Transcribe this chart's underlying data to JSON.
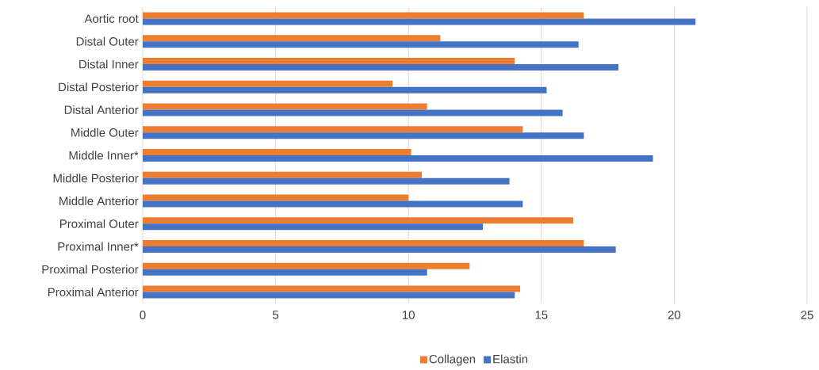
{
  "chart_data": {
    "type": "bar",
    "orientation": "horizontal",
    "categories": [
      "Aortic root",
      "Distal Outer",
      "Distal Inner",
      "Distal Posterior",
      "Distal Anterior",
      "Middle Outer",
      "Middle Inner*",
      "Middle Posterior",
      "Middle Anterior",
      "Proximal Outer",
      "Proximal Inner*",
      "Proximal Posterior",
      "Proximal Anterior"
    ],
    "series": [
      {
        "name": "Collagen",
        "color": "#ed7d31",
        "values": [
          16.6,
          11.2,
          14.0,
          9.4,
          10.7,
          14.3,
          10.1,
          10.5,
          10.0,
          16.2,
          16.6,
          12.3,
          14.2
        ]
      },
      {
        "name": "Elastin",
        "color": "#4472c4",
        "values": [
          20.8,
          16.4,
          17.9,
          15.2,
          15.8,
          16.6,
          19.2,
          13.8,
          14.3,
          12.8,
          17.8,
          10.7,
          14.0
        ]
      }
    ],
    "xlim": [
      0,
      25
    ],
    "xticks": [
      0,
      5,
      10,
      15,
      20,
      25
    ],
    "grid": "x",
    "legend": "bottom"
  }
}
